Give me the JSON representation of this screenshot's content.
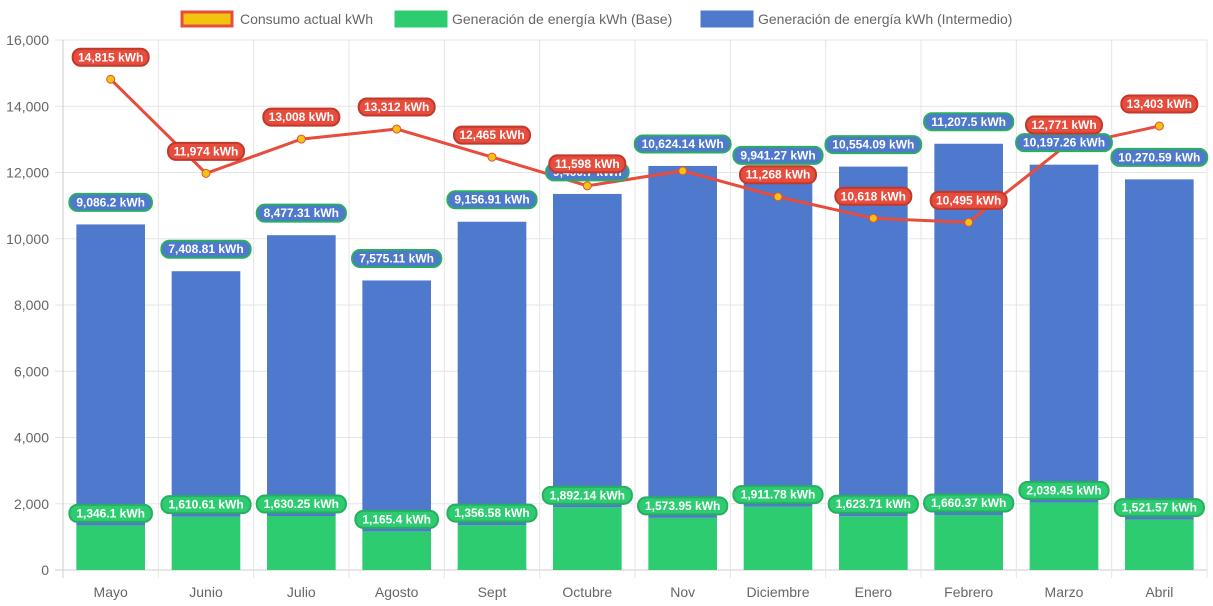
{
  "chart_data": {
    "type": "bar",
    "stacked": true,
    "title": "",
    "xlabel": "",
    "ylabel": "",
    "ylim": [
      0,
      16000
    ],
    "yticks": [
      0,
      2000,
      4000,
      6000,
      8000,
      10000,
      12000,
      14000,
      16000
    ],
    "ytick_labels": [
      "0",
      "2,000",
      "4,000",
      "6,000",
      "8,000",
      "10,000",
      "12,000",
      "14,000",
      "16,000"
    ],
    "grid": true,
    "legend_position": "top-center",
    "categories": [
      "Mayo",
      "Junio",
      "Julio",
      "Agosto",
      "Sept",
      "Octubre",
      "Nov",
      "Diciembre",
      "Enero",
      "Febrero",
      "Marzo",
      "Abril"
    ],
    "series": [
      {
        "name": "Consumo actual kWh",
        "type": "line",
        "color": "#e74c3c",
        "point_color": "#f1c40f",
        "values": [
          14815,
          11974,
          13008,
          13312,
          12465,
          11598,
          12050,
          11268,
          10618,
          10495,
          12771,
          13403
        ],
        "labels": [
          "14,815 kWh",
          "11,974 kWh",
          "13,008 kWh",
          "13,312 kWh",
          "12,465 kWh",
          "11,598 kWh",
          "",
          "11,268 kWh",
          "10,618 kWh",
          "10,495 kWh",
          "12,771 kWh",
          "13,403 kWh"
        ]
      },
      {
        "name": "Generación de energía kWh (Base)",
        "type": "bar",
        "color": "#2ecc71",
        "values": [
          1346.1,
          1610.61,
          1630.25,
          1165.4,
          1356.58,
          1892.14,
          1573.95,
          1911.78,
          1623.71,
          1660.37,
          2039.45,
          1521.57
        ],
        "labels": [
          "1,346.1 kWh",
          "1,610.61 kWh",
          "1,630.25 kWh",
          "1,165.4 kWh",
          "1,356.58 kWh",
          "1,892.14 kWh",
          "1,573.95 kWh",
          "1,911.78 kWh",
          "1,623.71 kWh",
          "1,660.37 kWh",
          "2,039.45 kWh",
          "1,521.57 kWh"
        ]
      },
      {
        "name": "Generación de energía kWh (Intermedio)",
        "type": "bar",
        "color": "#4e79cc",
        "values": [
          9086.2,
          7408.81,
          8477.31,
          7575.11,
          9156.91,
          9460.7,
          10624.14,
          9941.27,
          10554.09,
          11207.5,
          10197.26,
          10270.59
        ],
        "labels": [
          "9,086.2 kWh",
          "7,408.81 kWh",
          "8,477.31 kWh",
          "7,575.11 kWh",
          "9,156.91 kWh",
          "9,460.7 kWh",
          "10,624.14 kWh",
          "9,941.27 kWh",
          "10,554.09 kWh",
          "11,207.5 kWh",
          "10,197.26 kWh",
          "10,270.59 kWh"
        ]
      }
    ]
  }
}
